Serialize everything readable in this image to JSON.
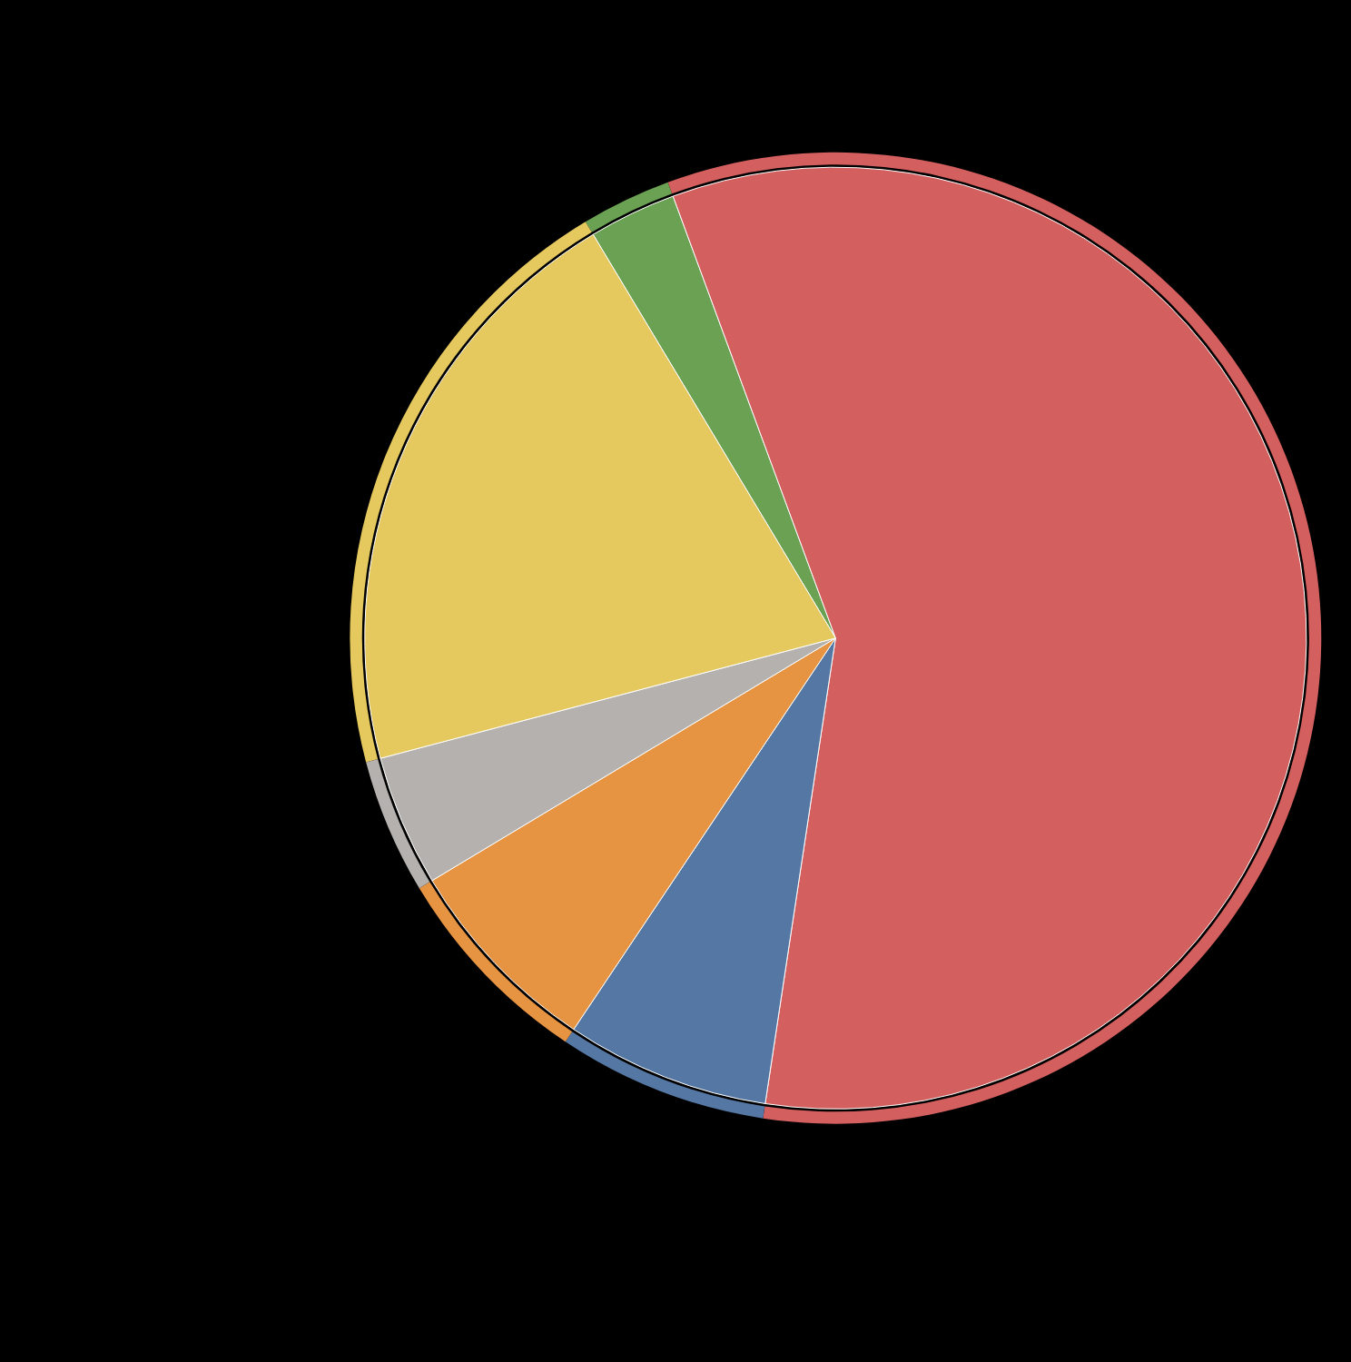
{
  "chart_data": {
    "type": "pie",
    "values": [
      3,
      58,
      7,
      7,
      4.5,
      20.5
    ],
    "colors": [
      "#6aa152",
      "#d45f5f",
      "#5577a3",
      "#e69441",
      "#b5b1ae",
      "#e5c95e"
    ],
    "data_labels": false
  }
}
